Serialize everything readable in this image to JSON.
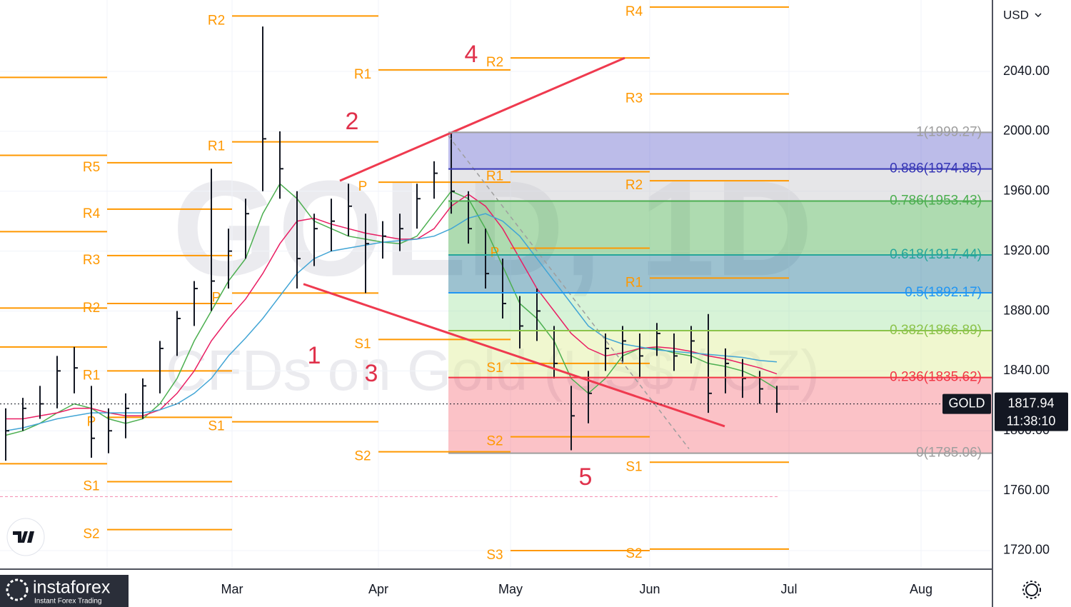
{
  "chart_data": {
    "type": "ohlc",
    "symbol_watermark": "GOLD, 1D",
    "description_watermark": "CFDs on Gold (US$ / OZ)",
    "currency": "USD",
    "ylim": [
      1707.6,
      2087.7
    ],
    "yticks": [
      {
        "value": 1720,
        "label": "1720.00"
      },
      {
        "value": 1760,
        "label": "1760.00"
      },
      {
        "value": 1800,
        "label": "1800.00"
      },
      {
        "value": 1840,
        "label": "1840.00"
      },
      {
        "value": 1880,
        "label": "1880.00"
      },
      {
        "value": 1920,
        "label": "1920.00"
      },
      {
        "value": 1960,
        "label": "1960.00"
      },
      {
        "value": 2000,
        "label": "2000.00"
      },
      {
        "value": 2040,
        "label": "2040.00"
      }
    ],
    "x_labels": [
      "Mar",
      "Apr",
      "May",
      "Jun",
      "Jul",
      "Aug"
    ],
    "bar_color": "#131722",
    "bars": {
      "high": [
        1815,
        1822,
        1830,
        1850,
        1856,
        1830,
        1815,
        1825,
        1835,
        1860,
        1880,
        1900,
        1975,
        1935,
        1955,
        2070,
        2000,
        1960,
        1945,
        1955,
        1965,
        1945,
        1940,
        1945,
        1965,
        1980,
        1999,
        1960,
        1935,
        1915,
        1890,
        1895,
        1870,
        1830,
        1840,
        1865,
        1870,
        1865,
        1872,
        1865,
        1870,
        1878,
        1855,
        1848,
        1840,
        1830
      ],
      "low": [
        1780,
        1800,
        1808,
        1815,
        1825,
        1782,
        1785,
        1795,
        1808,
        1825,
        1850,
        1870,
        1880,
        1895,
        1915,
        1960,
        1955,
        1895,
        1910,
        1920,
        1930,
        1892,
        1915,
        1920,
        1935,
        1955,
        1945,
        1925,
        1895,
        1875,
        1855,
        1860,
        1835,
        1787,
        1805,
        1840,
        1845,
        1835,
        1850,
        1840,
        1845,
        1812,
        1825,
        1822,
        1818,
        1812
      ],
      "close": [
        1800,
        1815,
        1818,
        1840,
        1842,
        1795,
        1800,
        1815,
        1830,
        1855,
        1875,
        1895,
        1900,
        1920,
        1945,
        1995,
        1975,
        1915,
        1935,
        1940,
        1950,
        1925,
        1930,
        1935,
        1955,
        1972,
        1960,
        1935,
        1905,
        1885,
        1870,
        1880,
        1845,
        1810,
        1825,
        1855,
        1860,
        1850,
        1865,
        1850,
        1860,
        1825,
        1845,
        1835,
        1828,
        1818
      ]
    },
    "moving_averages": [
      {
        "color": "#4caf50",
        "values": [
          1797,
          1800,
          1805,
          1812,
          1818,
          1815,
          1808,
          1805,
          1808,
          1818,
          1835,
          1860,
          1880,
          1900,
          1915,
          1945,
          1965,
          1955,
          1940,
          1935,
          1930,
          1928,
          1926,
          1925,
          1930,
          1945,
          1960,
          1955,
          1935,
          1910,
          1885,
          1875,
          1860,
          1835,
          1825,
          1835,
          1850,
          1855,
          1855,
          1852,
          1850,
          1845,
          1843,
          1840,
          1835,
          1828
        ]
      },
      {
        "color": "#e91e63",
        "values": [
          1808,
          1808,
          1810,
          1812,
          1815,
          1815,
          1812,
          1810,
          1810,
          1814,
          1825,
          1840,
          1860,
          1875,
          1888,
          1905,
          1925,
          1940,
          1942,
          1938,
          1935,
          1932,
          1930,
          1928,
          1928,
          1935,
          1950,
          1958,
          1950,
          1935,
          1915,
          1895,
          1880,
          1865,
          1855,
          1850,
          1852,
          1855,
          1856,
          1855,
          1853,
          1850,
          1848,
          1845,
          1842,
          1838
        ]
      },
      {
        "color": "#42a5d5",
        "values": [
          1800,
          1802,
          1805,
          1808,
          1810,
          1812,
          1812,
          1812,
          1812,
          1814,
          1818,
          1825,
          1835,
          1850,
          1862,
          1875,
          1890,
          1905,
          1915,
          1920,
          1922,
          1924,
          1926,
          1927,
          1928,
          1930,
          1935,
          1942,
          1945,
          1940,
          1930,
          1915,
          1900,
          1885,
          1870,
          1862,
          1858,
          1856,
          1854,
          1853,
          1852,
          1851,
          1850,
          1849,
          1847,
          1846
        ]
      }
    ],
    "fib_levels": [
      {
        "label": "1(1999.27)",
        "value": 1999.27,
        "color": "#9e9e9e",
        "fill": "rgba(63,63,191,0.35)"
      },
      {
        "label": "0.886(1974.85)",
        "value": 1974.85,
        "color": "#3535b5",
        "fill": "rgba(200,200,205,0.45)"
      },
      {
        "label": "0.786(1953.43)",
        "value": 1953.43,
        "color": "#4caf50",
        "fill": "rgba(76,175,80,0.45)"
      },
      {
        "label": "0.618(1917.44)",
        "value": 1917.44,
        "color": "#26a69a",
        "fill": "rgba(38,120,150,0.45)"
      },
      {
        "label": "0.5(1892.17)",
        "value": 1892.17,
        "color": "#2196f3",
        "fill": "rgba(139,220,139,0.35)"
      },
      {
        "label": "0.382(1866.89)",
        "value": 1866.89,
        "color": "#8bc34a",
        "fill": "rgba(225,240,160,0.5)"
      },
      {
        "label": "0.236(1835.62)",
        "value": 1835.62,
        "color": "#f23645",
        "fill": "rgba(242,54,69,0.3)"
      },
      {
        "label": "0(1785.06)",
        "value": 1785.06,
        "color": "#9e9e9e",
        "fill": null
      }
    ],
    "pivot_color": "#ff9800",
    "pivots": [
      {
        "levels": [
          {
            "label": null,
            "value": 2036
          },
          {
            "label": null,
            "value": 1984
          },
          {
            "label": null,
            "value": 1933
          },
          {
            "label": null,
            "value": 1882
          },
          {
            "label": null,
            "value": 1856
          },
          {
            "label": null,
            "value": 1778
          }
        ]
      },
      {
        "levels": [
          {
            "label": "R5",
            "value": 1979
          },
          {
            "label": "R4",
            "value": 1948
          },
          {
            "label": "R3",
            "value": 1917
          },
          {
            "label": "R2",
            "value": 1885
          },
          {
            "label": "R1",
            "value": 1840
          },
          {
            "label": "P",
            "value": 1809
          },
          {
            "label": "S1",
            "value": 1766
          },
          {
            "label": "S2",
            "value": 1734
          }
        ]
      },
      {
        "levels": [
          {
            "label": "R2",
            "value": 2077
          },
          {
            "label": "R1",
            "value": 1993
          },
          {
            "label": "P",
            "value": 1892
          },
          {
            "label": "S1",
            "value": 1806
          }
        ]
      },
      {
        "levels": [
          {
            "label": "R1",
            "value": 2041
          },
          {
            "label": "P",
            "value": 1966
          },
          {
            "label": "S1",
            "value": 1861
          },
          {
            "label": "S2",
            "value": 1786
          }
        ]
      },
      {
        "levels": [
          {
            "label": "R2",
            "value": 2049
          },
          {
            "label": "R1",
            "value": 1973
          },
          {
            "label": "P",
            "value": 1922
          },
          {
            "label": "S1",
            "value": 1845
          },
          {
            "label": "S2",
            "value": 1796
          },
          {
            "label": "S3",
            "value": 1720
          }
        ]
      },
      {
        "levels": [
          {
            "label": "R4",
            "value": 2083
          },
          {
            "label": "R3",
            "value": 2025
          },
          {
            "label": "R2",
            "value": 1967
          },
          {
            "label": "R1",
            "value": 1902
          },
          {
            "label": "S1",
            "value": 1779
          },
          {
            "label": "S2",
            "value": 1721
          }
        ]
      }
    ],
    "trendlines": [
      {
        "start": 1967,
        "end": 2049,
        "color": "#ef3a4f",
        "dashed": false
      },
      {
        "start": 1898,
        "end": 1803,
        "color": "#ef3a4f",
        "dashed": false
      },
      {
        "start": 1997,
        "end": 1788,
        "color": "#9e9e9e",
        "dashed": true
      }
    ],
    "wave_labels": [
      "1",
      "2",
      "3",
      "4",
      "5"
    ],
    "wave_color": "#e0314b",
    "alert_level": 1756,
    "last_price": {
      "symbol": "GOLD",
      "value": 1817.94,
      "countdown": "11:38:10"
    },
    "branding": {
      "name": "instaforex",
      "tagline": "Instant Forex Trading"
    }
  }
}
